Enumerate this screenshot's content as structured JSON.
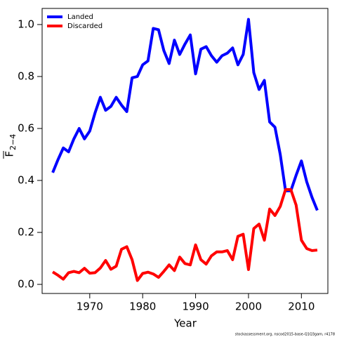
{
  "chart_data": {
    "type": "line",
    "xlabel": "Year",
    "ylabel": {
      "base": "F",
      "subscript": "2−4"
    },
    "footnote": "stockassessment.org, nscod2015-base-Q1Q3gam, r4178",
    "legend": "top-left",
    "x": [
      1963,
      1964,
      1965,
      1966,
      1967,
      1968,
      1969,
      1970,
      1971,
      1972,
      1973,
      1974,
      1975,
      1976,
      1977,
      1978,
      1979,
      1980,
      1981,
      1982,
      1983,
      1984,
      1985,
      1986,
      1987,
      1988,
      1989,
      1990,
      1991,
      1992,
      1993,
      1994,
      1995,
      1996,
      1997,
      1998,
      1999,
      2000,
      2001,
      2002,
      2003,
      2004,
      2005,
      2006,
      2007,
      2008,
      2009,
      2010,
      2011,
      2012,
      2013
    ],
    "series": [
      {
        "name": "Landed",
        "color": "#0000ff",
        "values": [
          0.43,
          0.48,
          0.525,
          0.51,
          0.56,
          0.6,
          0.56,
          0.59,
          0.66,
          0.72,
          0.67,
          0.685,
          0.72,
          0.69,
          0.665,
          0.795,
          0.8,
          0.845,
          0.86,
          0.985,
          0.98,
          0.9,
          0.85,
          0.94,
          0.885,
          0.925,
          0.96,
          0.81,
          0.905,
          0.915,
          0.88,
          0.855,
          0.88,
          0.89,
          0.91,
          0.845,
          0.885,
          1.02,
          0.815,
          0.75,
          0.785,
          0.625,
          0.605,
          0.5,
          0.36,
          0.36,
          0.42,
          0.475,
          0.395,
          0.335,
          0.285
        ]
      },
      {
        "name": "Discarded",
        "color": "#ff0000",
        "values": [
          0.048,
          0.035,
          0.02,
          0.045,
          0.05,
          0.045,
          0.062,
          0.043,
          0.045,
          0.063,
          0.092,
          0.058,
          0.07,
          0.135,
          0.145,
          0.095,
          0.015,
          0.042,
          0.047,
          0.04,
          0.027,
          0.05,
          0.075,
          0.053,
          0.105,
          0.08,
          0.075,
          0.152,
          0.095,
          0.078,
          0.11,
          0.125,
          0.125,
          0.13,
          0.095,
          0.185,
          0.193,
          0.057,
          0.215,
          0.232,
          0.17,
          0.29,
          0.265,
          0.3,
          0.365,
          0.365,
          0.305,
          0.17,
          0.138,
          0.13,
          0.132
        ]
      }
    ],
    "xlim": [
      1961,
      2015
    ],
    "xticks": [
      1970,
      1980,
      1990,
      2000,
      2010
    ],
    "ylim": [
      -0.035,
      1.062
    ],
    "yticks": [
      {
        "value": 0,
        "label": "0.0"
      },
      0.2,
      0.4,
      0.6,
      0.8,
      {
        "value": 1,
        "label": "1.0"
      }
    ]
  }
}
